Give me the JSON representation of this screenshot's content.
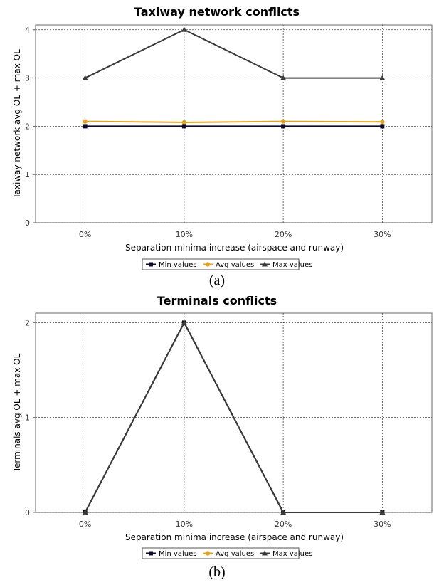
{
  "chart_data": [
    {
      "type": "line",
      "title": "Taxiway network conflicts",
      "xlabel": "Separation minima increase (airspace and runway)",
      "ylabel": "Taxiway network avg OL + max OL",
      "categories": [
        "0%",
        "10%",
        "20%",
        "30%"
      ],
      "yticks": [
        0,
        1,
        2,
        3,
        4
      ],
      "ylim": [
        0,
        4.1
      ],
      "grid": true,
      "legend_position": "bottom",
      "series": [
        {
          "name": "Min values",
          "values": [
            2,
            2,
            2,
            2
          ],
          "color": "#0a0a2a",
          "marker": "square"
        },
        {
          "name": "Avg values",
          "values": [
            2.1,
            2.08,
            2.1,
            2.09
          ],
          "color": "#e0a526",
          "marker": "circle"
        },
        {
          "name": "Max values",
          "values": [
            3,
            4,
            3,
            3
          ],
          "color": "#3a3a3a",
          "marker": "triangle"
        }
      ],
      "caption": "(a)"
    },
    {
      "type": "line",
      "title": "Terminals conflicts",
      "xlabel": "Separation minima increase (airspace and runway)",
      "ylabel": "Terminals avg OL + max OL",
      "categories": [
        "0%",
        "10%",
        "20%",
        "30%"
      ],
      "yticks": [
        0,
        1,
        2
      ],
      "ylim": [
        0,
        2.1
      ],
      "grid": true,
      "legend_position": "bottom",
      "series": [
        {
          "name": "Min values",
          "values": [
            0,
            2,
            0,
            0
          ],
          "color": "#0a0a2a",
          "marker": "square"
        },
        {
          "name": "Avg values",
          "values": [
            0,
            2,
            0,
            0
          ],
          "color": "#e0a526",
          "marker": "circle"
        },
        {
          "name": "Max values",
          "values": [
            0,
            2,
            0,
            0
          ],
          "color": "#3a3a3a",
          "marker": "triangle"
        }
      ],
      "caption": "(b)"
    }
  ]
}
